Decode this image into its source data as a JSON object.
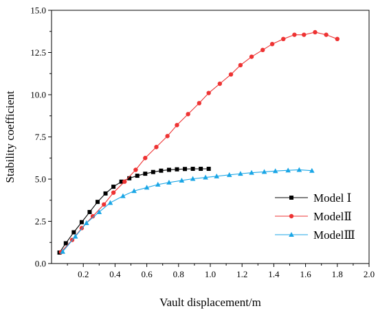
{
  "chart_data": {
    "type": "line",
    "title": "",
    "xlabel": "Vault displacement/m",
    "ylabel": "Stability coefficient",
    "xlim": [
      0.0,
      2.0
    ],
    "ylim": [
      0.0,
      15.0
    ],
    "x_ticks": [
      "0.2",
      "0.4",
      "0.6",
      "0.8",
      "1.0",
      "1.2",
      "1.4",
      "1.6",
      "1.8",
      "2.0"
    ],
    "y_ticks": [
      "0.0",
      "2.5",
      "5.0",
      "7.5",
      "10.0",
      "12.5",
      "15.0"
    ],
    "grid": false,
    "legend_position": "bottom-right",
    "series": [
      {
        "name": "Model Ⅰ",
        "color": "#000000",
        "marker": "square",
        "x": [
          0.05,
          0.09,
          0.14,
          0.19,
          0.24,
          0.29,
          0.34,
          0.39,
          0.44,
          0.49,
          0.54,
          0.59,
          0.64,
          0.69,
          0.74,
          0.79,
          0.84,
          0.89,
          0.94,
          0.99
        ],
        "y": [
          0.65,
          1.2,
          1.85,
          2.45,
          3.05,
          3.65,
          4.15,
          4.55,
          4.85,
          5.05,
          5.2,
          5.32,
          5.42,
          5.5,
          5.55,
          5.58,
          5.6,
          5.61,
          5.61,
          5.61
        ]
      },
      {
        "name": "ModelⅡ",
        "color": "#ee3333",
        "marker": "circle",
        "x": [
          0.06,
          0.13,
          0.19,
          0.26,
          0.33,
          0.39,
          0.46,
          0.53,
          0.59,
          0.66,
          0.73,
          0.79,
          0.86,
          0.93,
          0.99,
          1.06,
          1.13,
          1.19,
          1.26,
          1.33,
          1.39,
          1.46,
          1.53,
          1.59,
          1.66,
          1.73,
          1.8
        ],
        "y": [
          0.68,
          1.4,
          2.1,
          2.8,
          3.5,
          4.2,
          4.85,
          5.55,
          6.25,
          6.9,
          7.55,
          8.2,
          8.85,
          9.5,
          10.1,
          10.65,
          11.2,
          11.75,
          12.25,
          12.65,
          13.0,
          13.3,
          13.55,
          13.55,
          13.7,
          13.55,
          13.3
        ]
      },
      {
        "name": "ModelⅢ",
        "color": "#1aa6e6",
        "marker": "triangle",
        "x": [
          0.07,
          0.15,
          0.22,
          0.3,
          0.37,
          0.45,
          0.52,
          0.6,
          0.67,
          0.74,
          0.82,
          0.89,
          0.97,
          1.04,
          1.12,
          1.19,
          1.26,
          1.34,
          1.41,
          1.49,
          1.56,
          1.64
        ],
        "y": [
          0.7,
          1.6,
          2.4,
          3.05,
          3.6,
          4.0,
          4.3,
          4.5,
          4.68,
          4.8,
          4.92,
          5.02,
          5.1,
          5.17,
          5.25,
          5.32,
          5.38,
          5.43,
          5.48,
          5.52,
          5.55,
          5.5
        ]
      }
    ]
  }
}
